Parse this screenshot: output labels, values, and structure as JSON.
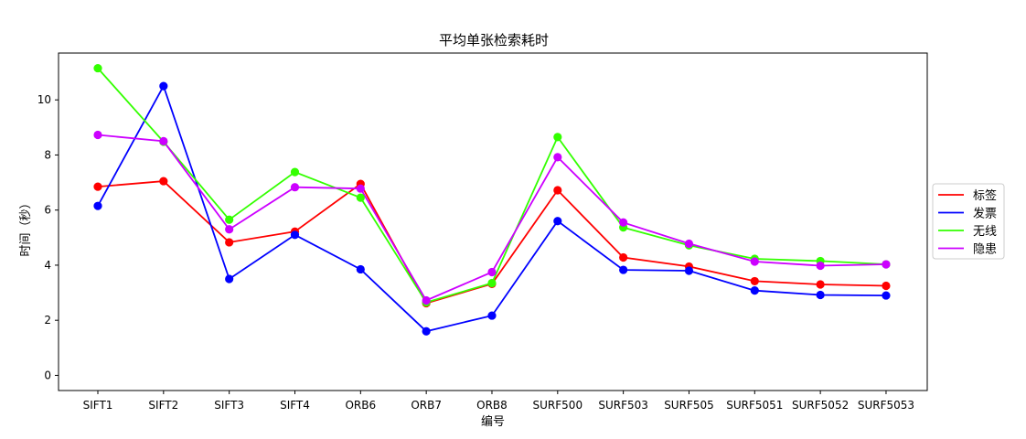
{
  "chart_data": {
    "type": "line",
    "title": "平均单张检索耗时",
    "xlabel": "编号",
    "ylabel": "时间（秒）",
    "categories": [
      "SIFT1",
      "SIFT2",
      "SIFT3",
      "SIFT4",
      "ORB6",
      "ORB7",
      "ORB8",
      "SURF500",
      "SURF503",
      "SURF505",
      "SURF5051",
      "SURF5052",
      "SURF5053"
    ],
    "ylim": [
      -0.55,
      11.7
    ],
    "yticks": [
      0,
      2,
      4,
      6,
      8,
      10
    ],
    "legend_position": "center-right",
    "series": [
      {
        "name": "标签",
        "color": "#ff0000",
        "values": [
          6.85,
          7.05,
          4.83,
          5.22,
          6.95,
          2.62,
          3.32,
          6.72,
          4.28,
          3.95,
          3.42,
          3.3,
          3.25
        ]
      },
      {
        "name": "发票",
        "color": "#0000ff",
        "values": [
          6.15,
          10.5,
          3.5,
          5.1,
          3.85,
          1.6,
          2.17,
          5.6,
          3.83,
          3.8,
          3.08,
          2.92,
          2.9
        ]
      },
      {
        "name": "无线",
        "color": "#33ff00",
        "values": [
          11.15,
          8.48,
          5.65,
          7.38,
          6.45,
          2.65,
          3.35,
          8.65,
          5.37,
          4.72,
          4.23,
          4.15,
          4.03
        ]
      },
      {
        "name": "隐患",
        "color": "#cc00ff",
        "values": [
          8.73,
          8.5,
          5.3,
          6.83,
          6.78,
          2.72,
          3.75,
          7.92,
          5.55,
          4.78,
          4.13,
          3.98,
          4.03
        ]
      }
    ]
  }
}
